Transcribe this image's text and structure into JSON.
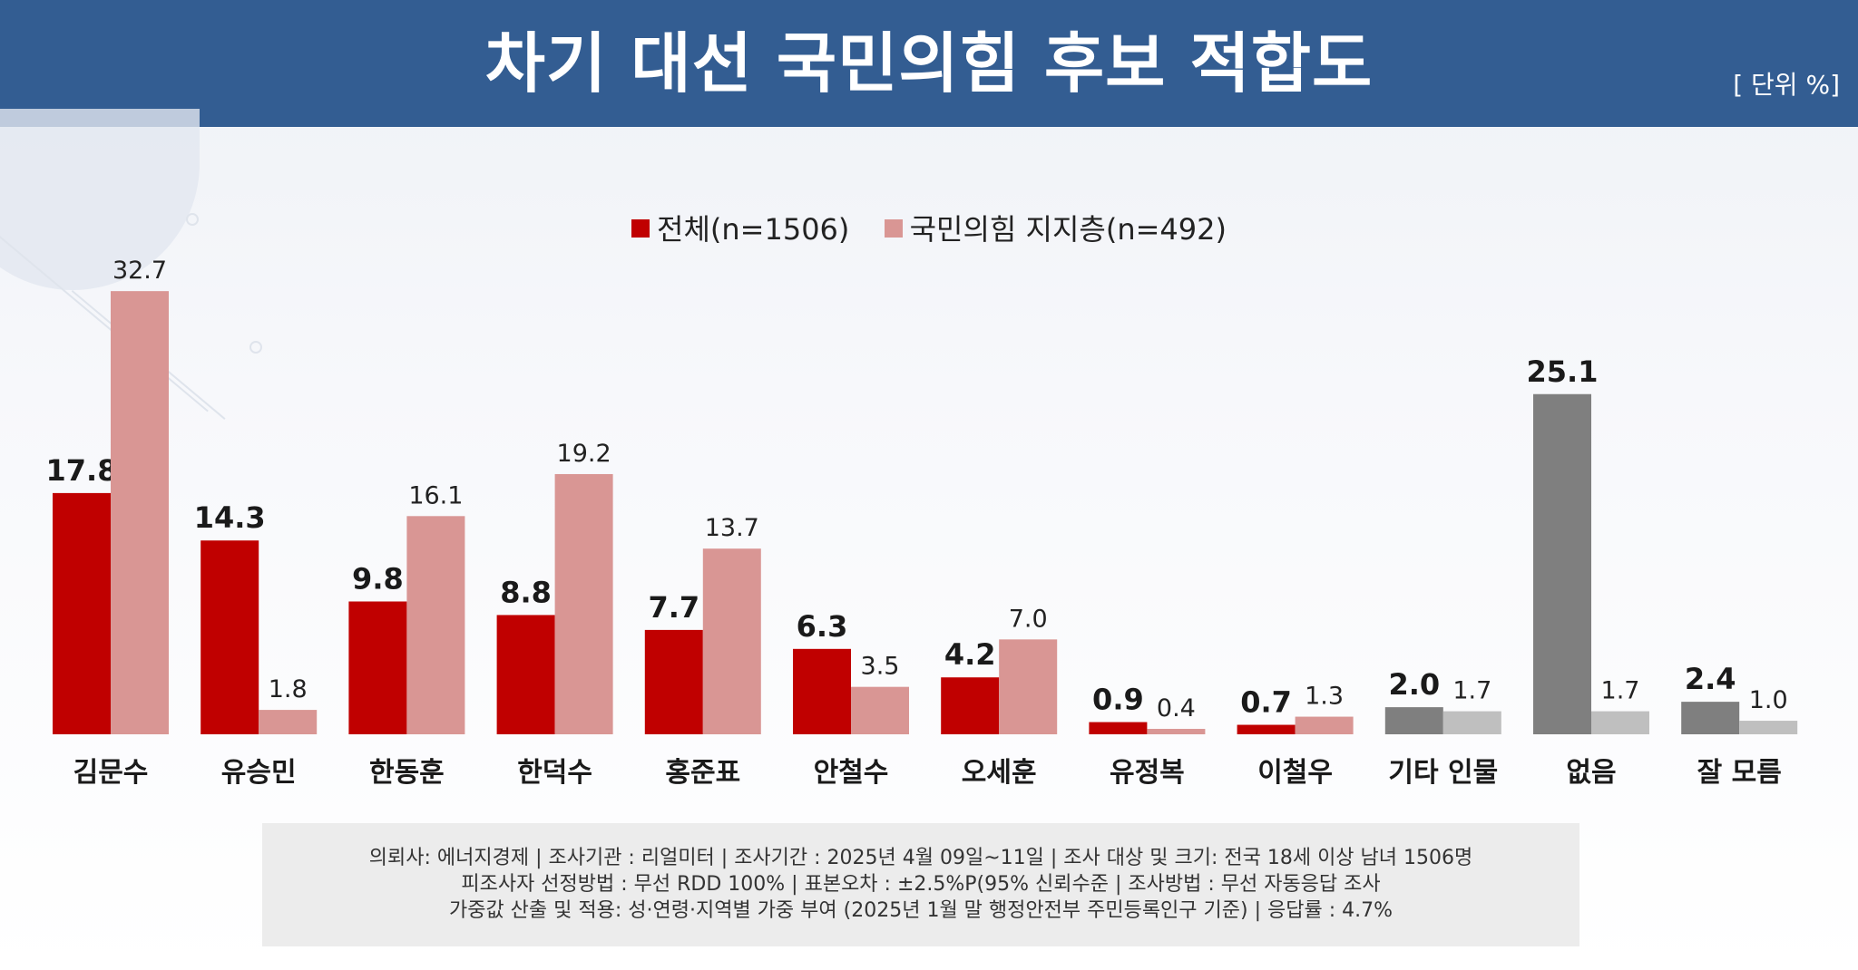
{
  "header": {
    "title": "차기 대선 국민의힘 후보 적합도",
    "unit": "[ 단위 %]"
  },
  "legend": {
    "total": "전체(n=1506)",
    "ppp": "국민의힘 지지층(n=492)"
  },
  "chart_data": {
    "type": "bar",
    "title": "차기 대선 국민의힘 후보 적합도",
    "unit": "%",
    "categories": [
      "김문수",
      "유승민",
      "한동훈",
      "한덕수",
      "홍준표",
      "안철수",
      "오세훈",
      "유정복",
      "이철우",
      "기타 인물",
      "없음",
      "잘 모름"
    ],
    "series": [
      {
        "name": "전체(n=1506)",
        "values": [
          17.8,
          14.3,
          9.8,
          8.8,
          7.7,
          6.3,
          4.2,
          0.9,
          0.7,
          2.0,
          25.1,
          2.4
        ],
        "labels": [
          "17.8",
          "14.3",
          "9.8",
          "8.8",
          "7.7",
          "6.3",
          "4.2",
          "0.9",
          "0.7",
          "2.0",
          "25.1",
          "2.4"
        ]
      },
      {
        "name": "국민의힘 지지층(n=492)",
        "values": [
          32.7,
          1.8,
          16.1,
          19.2,
          13.7,
          3.5,
          7.0,
          0.4,
          1.3,
          1.7,
          1.7,
          1.0
        ],
        "labels": [
          "32.7",
          "1.8",
          "16.1",
          "19.2",
          "13.7",
          "3.5",
          "7.0",
          "0.4",
          "1.3",
          "1.7",
          "1.7",
          "1.0"
        ]
      }
    ],
    "ylim": [
      0,
      35
    ],
    "grid": false,
    "legend_position": "top-center",
    "colors": {
      "total": "#c00000",
      "ppp": "#d99694",
      "total_other": "#7f7f7f",
      "ppp_other": "#bfbfbf"
    }
  },
  "footer": {
    "line1": "의뢰사: 에너지경제 | 조사기관 : 리얼미터  |  조사기간 : 2025년 4월 09일~11일 | 조사 대상 및 크기: 전국 18세 이상 남녀 1506명",
    "line2": "피조사자 선정방법 : 무선 RDD 100% | 표본오차 : ±2.5%P(95% 신뢰수준 | 조사방법 : 무선 자동응답 조사",
    "line3": "가중값 산출 및 적용: 성·연령·지역별 가중 부여 (2025년 1월 말 행정안전부 주민등록인구 기준) | 응답률 : 4.7%"
  }
}
